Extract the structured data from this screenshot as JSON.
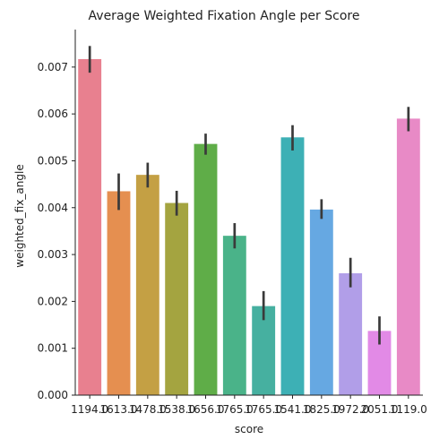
{
  "chart_data": {
    "type": "bar",
    "title": "Average Weighted Fixation Angle per Score",
    "xlabel": "score",
    "ylabel": "weighted_fix_angle",
    "ylim": [
      0,
      0.0078
    ],
    "yticks": [
      "0.000",
      "0.001",
      "0.002",
      "0.003",
      "0.004",
      "0.005",
      "0.006",
      "0.007"
    ],
    "categories": [
      "1194.0",
      "1613.0",
      "1478.0",
      "1538.0",
      "1656.0",
      "1765.0",
      "1765.0",
      "1541.0",
      "1825.0",
      "1972.0",
      "2051.0",
      "1119.0"
    ],
    "category_labels": [
      "1194.0",
      "1613.0",
      "1478.0",
      "1538.0",
      "1656.0",
      "1765.0",
      "1765.0",
      "1541.0",
      "1825.0",
      "1972.0",
      "2051.0",
      "1119.0"
    ],
    "values": [
      0.00717,
      0.00435,
      0.0047,
      0.0041,
      0.00536,
      0.0034,
      0.0019,
      0.0055,
      0.00396,
      0.0026,
      0.00137,
      0.0059
    ],
    "ci_low": [
      0.00688,
      0.00395,
      0.00443,
      0.00383,
      0.00513,
      0.00313,
      0.0016,
      0.00522,
      0.00376,
      0.0023,
      0.00108,
      0.00563
    ],
    "ci_high": [
      0.00745,
      0.00473,
      0.00496,
      0.00436,
      0.00558,
      0.00367,
      0.00222,
      0.00576,
      0.00418,
      0.00293,
      0.00168,
      0.00615
    ],
    "colors": [
      "#e8808f",
      "#e58f50",
      "#c4a044",
      "#a4a440",
      "#5fad48",
      "#4ab389",
      "#46b0a0",
      "#3db0b5",
      "#66a8e2",
      "#b19ee8",
      "#e28ae6",
      "#e88ac6"
    ],
    "grid": false,
    "legend": "none"
  }
}
